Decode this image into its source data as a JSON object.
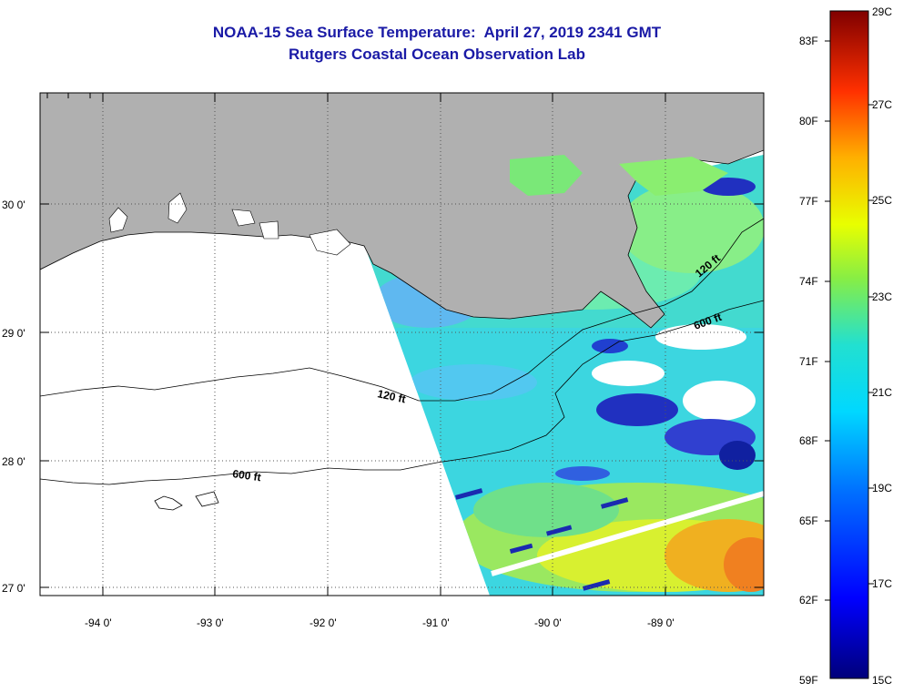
{
  "title": {
    "line1": "NOAA-15 Sea Surface Temperature:  April 27, 2019 2341 GMT",
    "line2": "Rutgers Coastal Ocean Observation Lab"
  },
  "axes": {
    "lon_labels": [
      "-94 0'",
      "-93 0'",
      "-92 0'",
      "-91 0'",
      "-90 0'",
      "-89 0'"
    ],
    "lat_labels": [
      "30 0'",
      "29 0'",
      "28 0'",
      "27 0'"
    ]
  },
  "contours": {
    "shelf_120": "120 ft",
    "shelf_600": "600 ft",
    "east_120": "120 ft",
    "east_600": "600 ft"
  },
  "colorbar": {
    "fahrenheit": [
      "83F",
      "80F",
      "77F",
      "74F",
      "71F",
      "68F",
      "65F",
      "62F",
      "59F"
    ],
    "celsius": [
      "29C",
      "27C",
      "25C",
      "23C",
      "21C",
      "19C",
      "17C",
      "15C"
    ]
  },
  "colors": {
    "land": "#b0b0b0",
    "title": "#1a1aa6",
    "no_data": "#ffffff"
  }
}
